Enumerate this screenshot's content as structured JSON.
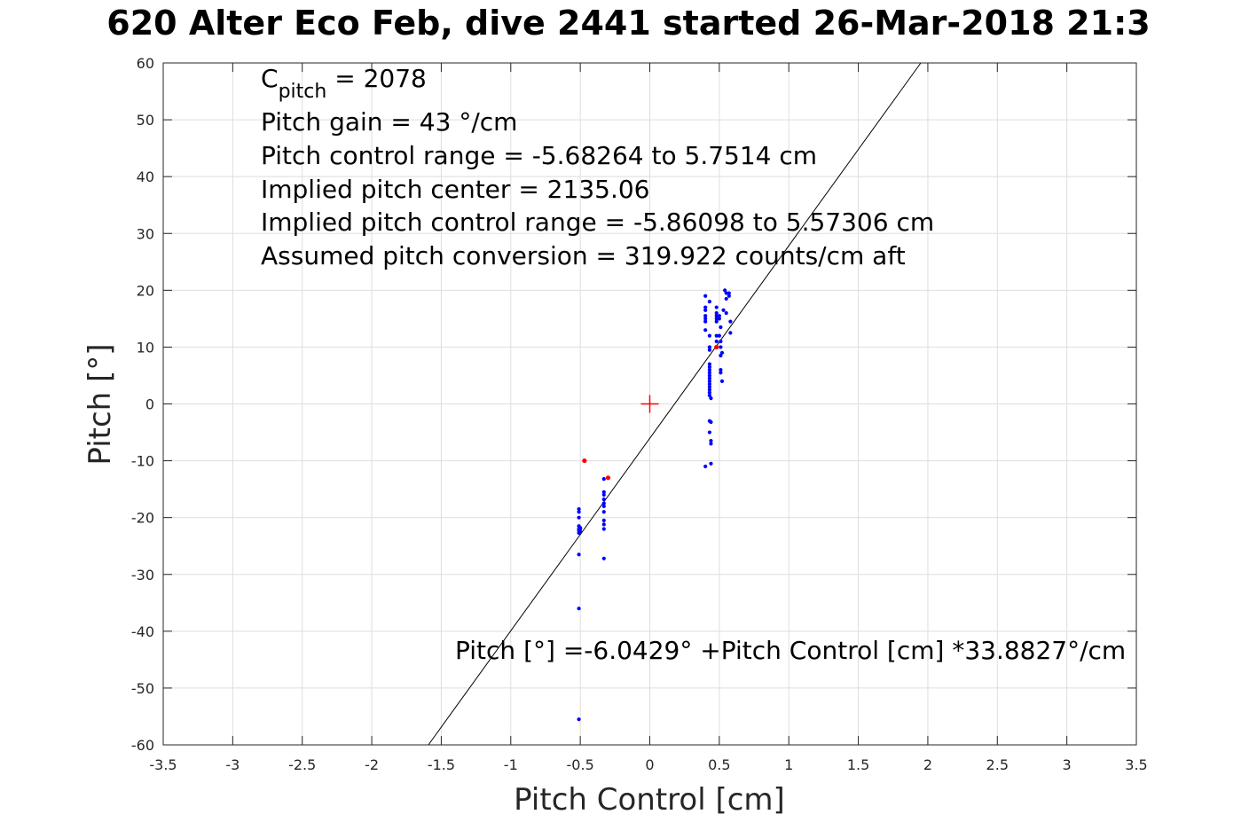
{
  "chart_data": {
    "type": "scatter",
    "title": "620 Alter Eco Feb, dive 2441 started 26-Mar-2018 21:3",
    "xlabel": "Pitch Control [cm]",
    "ylabel": "Pitch [°]",
    "xlim": [
      -3.5,
      3.5
    ],
    "ylim": [
      -60,
      60
    ],
    "xticks": [
      -3.5,
      -3,
      -2.5,
      -2,
      -1.5,
      -1,
      -0.5,
      0,
      0.5,
      1,
      1.5,
      2,
      2.5,
      3,
      3.5
    ],
    "xtick_labels": [
      "-3.5",
      "-3",
      "-2.5",
      "-2",
      "-1.5",
      "-1",
      "-0.5",
      "0",
      "0.5",
      "1",
      "1.5",
      "2",
      "2.5",
      "3",
      "3.5"
    ],
    "yticks": [
      -60,
      -50,
      -40,
      -30,
      -20,
      -10,
      0,
      10,
      20,
      30,
      40,
      50,
      60
    ],
    "ytick_labels": [
      "-60",
      "-50",
      "-40",
      "-30",
      "-20",
      "-10",
      "0",
      "10",
      "20",
      "30",
      "40",
      "50",
      "60"
    ],
    "grid": true,
    "colors": {
      "points": "#0000ff",
      "outliers": "#ff0000",
      "fit": "#000000",
      "grid": "#dedede",
      "center": "#ff0000"
    },
    "fit_line": {
      "intercept": -6.0429,
      "slope": 33.8827
    },
    "center_marker": {
      "x": 0,
      "y": 0
    },
    "annotations": {
      "c_pitch_main": "C",
      "c_pitch_sub": "pitch",
      "c_pitch_rest": " = 2078",
      "lines": [
        "Pitch gain = 43 °/cm",
        "Pitch control range = -5.68264 to 5.7514 cm",
        "Implied pitch center = 2135.06",
        "Implied pitch control range = -5.86098 to 5.57306 cm",
        "Assumed pitch conversion = 319.922 counts/cm aft"
      ],
      "fit_equation": "Pitch [°] =-6.0429° +Pitch Control [cm] *33.8827°/cm"
    },
    "series": [
      {
        "role": "points",
        "x": [
          -0.51,
          -0.51,
          -0.51,
          -0.51,
          -0.51,
          -0.51,
          -0.51,
          -0.5,
          -0.5,
          -0.5,
          -0.51,
          -0.51,
          -0.51,
          -0.33,
          -0.33,
          -0.33,
          -0.33,
          -0.33,
          -0.33,
          -0.33,
          -0.33,
          -0.33,
          -0.33,
          -0.33,
          0.4,
          0.4,
          0.4,
          0.4,
          0.4,
          0.4,
          0.4,
          0.4,
          0.43,
          0.43,
          0.43,
          0.43,
          0.43,
          0.43,
          0.43,
          0.43,
          0.43,
          0.43,
          0.43,
          0.43,
          0.43,
          0.43,
          0.43,
          0.43,
          0.43,
          0.44,
          0.44,
          0.44,
          0.44,
          0.44,
          0.43,
          0.48,
          0.48,
          0.48,
          0.48,
          0.48,
          0.48,
          0.48,
          0.48,
          0.5,
          0.5,
          0.5,
          0.51,
          0.51,
          0.51,
          0.51,
          0.51,
          0.52,
          0.53,
          0.54,
          0.55,
          0.55,
          0.55,
          0.57,
          0.57,
          0.58,
          0.58,
          0.51,
          0.52
        ],
        "y": [
          -18.5,
          -19,
          -20,
          -21.5,
          -22,
          -22.3,
          -22.7,
          -21.8,
          -22,
          -22.5,
          -26.5,
          -36,
          -55.5,
          -13.2,
          -15.5,
          -16,
          -16.8,
          -17.5,
          -18,
          -19,
          -20.5,
          -21.2,
          -22,
          -27.2,
          19,
          17,
          16.5,
          15.5,
          15,
          14.5,
          13,
          -11,
          12,
          10,
          9.5,
          7,
          6.5,
          6,
          5.5,
          5,
          4.5,
          4,
          3.5,
          3,
          2.5,
          2,
          1.5,
          -3,
          -5,
          -7,
          -6.5,
          -10.5,
          -3.2,
          1,
          18,
          17,
          15.5,
          15,
          14.5,
          12,
          11,
          10,
          16,
          15,
          12,
          15.5,
          13.5,
          11,
          10,
          8.5,
          6,
          4,
          16.5,
          20,
          19.5,
          18.5,
          16,
          19.5,
          19,
          14.5,
          12.5,
          5.5,
          9
        ]
      },
      {
        "role": "outliers",
        "x": [
          -0.47,
          -0.3,
          0.48
        ],
        "y": [
          -10,
          -13,
          10
        ]
      }
    ]
  }
}
